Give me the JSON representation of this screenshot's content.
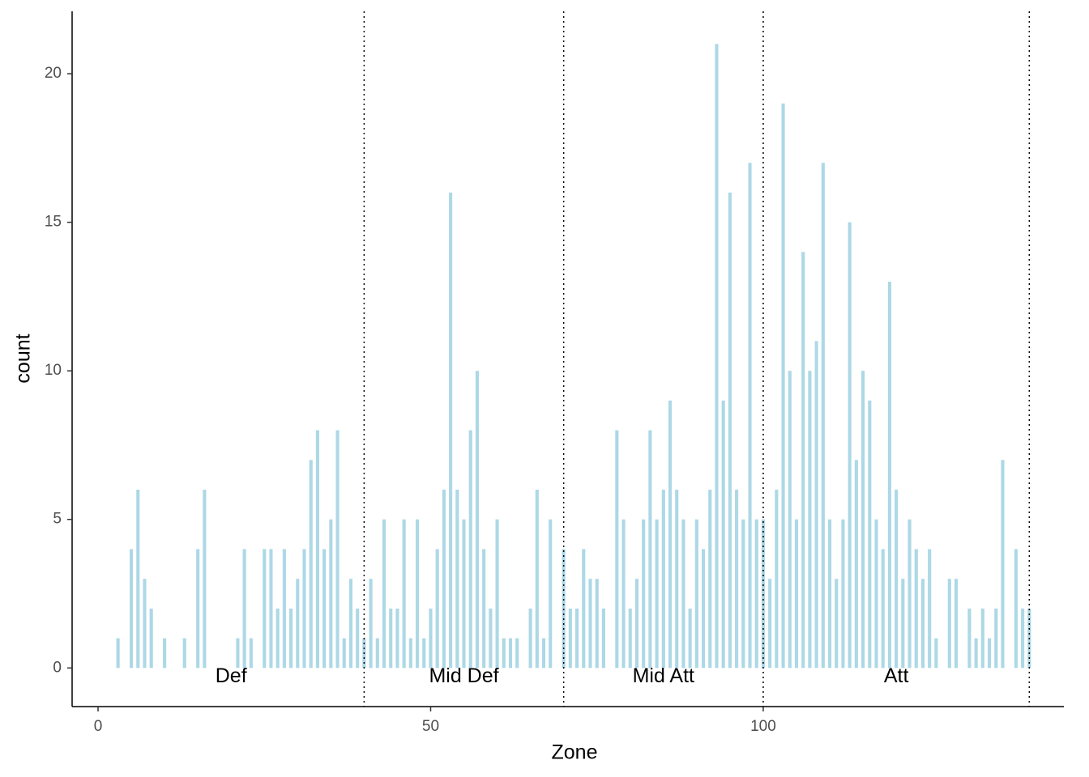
{
  "chart_data": {
    "type": "bar",
    "x_label": "Zone",
    "y_label": "count",
    "x": [
      3,
      5,
      6,
      7,
      8,
      10,
      13,
      15,
      16,
      21,
      22,
      23,
      25,
      26,
      27,
      28,
      29,
      30,
      31,
      32,
      33,
      34,
      35,
      36,
      37,
      38,
      39,
      40,
      41,
      42,
      43,
      44,
      45,
      46,
      47,
      48,
      49,
      50,
      51,
      52,
      53,
      54,
      55,
      56,
      57,
      58,
      59,
      60,
      61,
      62,
      63,
      65,
      66,
      67,
      68,
      70,
      71,
      72,
      73,
      74,
      75,
      76,
      78,
      79,
      80,
      81,
      82,
      83,
      84,
      85,
      86,
      87,
      88,
      89,
      90,
      91,
      92,
      93,
      94,
      95,
      96,
      97,
      98,
      99,
      100,
      101,
      102,
      103,
      104,
      105,
      106,
      107,
      108,
      109,
      110,
      111,
      112,
      113,
      114,
      115,
      116,
      117,
      118,
      119,
      120,
      121,
      122,
      123,
      124,
      125,
      126,
      128,
      129,
      131,
      132,
      133,
      134,
      135,
      136,
      138,
      139,
      140
    ],
    "values": [
      1,
      4,
      6,
      3,
      2,
      1,
      1,
      4,
      6,
      1,
      4,
      1,
      4,
      4,
      2,
      4,
      2,
      3,
      4,
      7,
      8,
      4,
      5,
      8,
      1,
      3,
      2,
      1,
      3,
      1,
      5,
      2,
      2,
      5,
      1,
      5,
      1,
      2,
      4,
      6,
      16,
      6,
      5,
      8,
      10,
      4,
      2,
      5,
      1,
      1,
      1,
      2,
      6,
      1,
      5,
      4,
      2,
      2,
      4,
      3,
      3,
      2,
      8,
      5,
      2,
      3,
      5,
      8,
      5,
      6,
      9,
      6,
      5,
      2,
      5,
      4,
      6,
      21,
      9,
      16,
      6,
      5,
      17,
      5,
      5,
      3,
      6,
      19,
      10,
      5,
      14,
      10,
      11,
      17,
      5,
      3,
      5,
      15,
      7,
      10,
      9,
      5,
      4,
      13,
      6,
      3,
      5,
      4,
      3,
      4,
      1,
      3,
      3,
      2,
      1,
      2,
      1,
      2,
      7,
      4,
      2,
      2
    ],
    "color": "#add8e6",
    "zones": [
      {
        "name": "Def",
        "from": 0,
        "to": 40
      },
      {
        "name": "Mid Def",
        "from": 40,
        "to": 70
      },
      {
        "name": "Mid Att",
        "from": 70,
        "to": 100
      },
      {
        "name": "Att",
        "from": 100,
        "to": 140
      }
    ],
    "xlim": [
      -3.9,
      145.2
    ],
    "xticks": [
      0,
      50,
      100
    ],
    "ylim": [
      -1.3,
      22.1
    ],
    "yticks": [
      0,
      5,
      10,
      15,
      20
    ],
    "grid": false
  }
}
